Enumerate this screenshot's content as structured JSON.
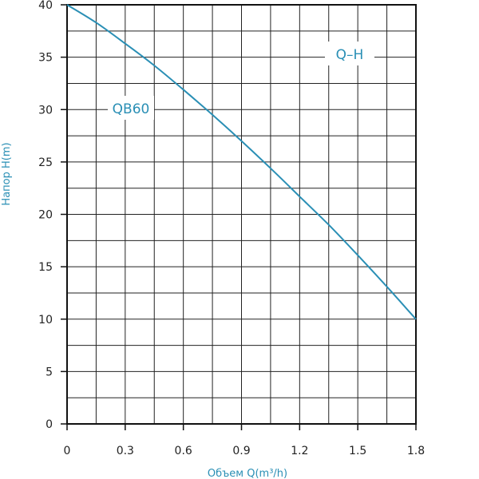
{
  "chart_data": {
    "type": "line",
    "xlabel": "Объем Q(m³/h)",
    "ylabel": "Напор H(m)",
    "xlim": [
      0,
      1.8
    ],
    "ylim": [
      0,
      40
    ],
    "xticks": [
      "0",
      "0.3",
      "0.6",
      "0.9",
      "1.2",
      "1.5",
      "1.8"
    ],
    "yticks": [
      "0",
      "5",
      "10",
      "15",
      "20",
      "25",
      "30",
      "35",
      "40"
    ],
    "grid": true,
    "annotations": [
      "Q–H",
      "QB60"
    ],
    "series": [
      {
        "name": "QB60",
        "color": "#2a8fb5",
        "x": [
          0,
          0.15,
          0.3,
          0.45,
          0.6,
          0.75,
          0.9,
          1.05,
          1.2,
          1.35,
          1.5,
          1.65,
          1.8
        ],
        "y": [
          40,
          38.3,
          36.3,
          34.2,
          31.9,
          29.5,
          27.0,
          24.4,
          21.7,
          19.0,
          16.1,
          13.1,
          10.0
        ]
      }
    ]
  }
}
